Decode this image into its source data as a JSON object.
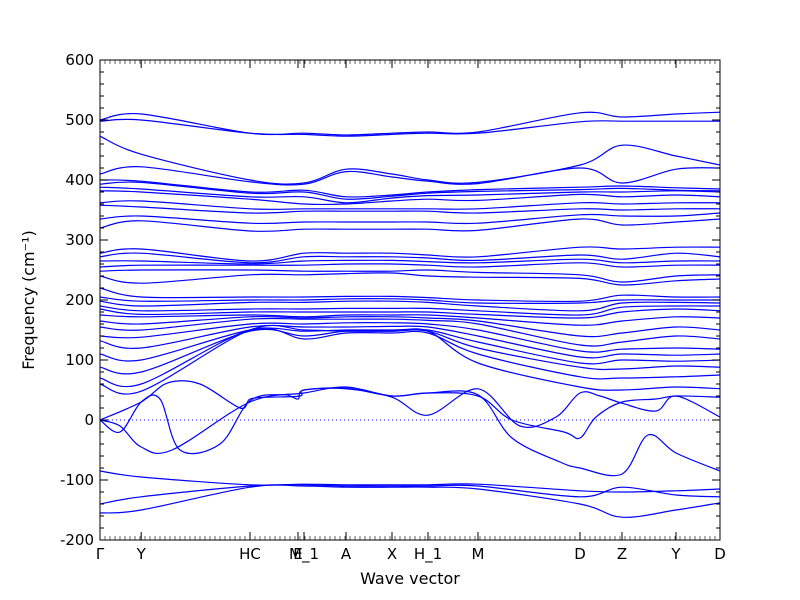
{
  "chart_data": {
    "type": "line",
    "title": "",
    "xlabel": "Wave vector",
    "ylabel": "Frequency (cm⁻¹)",
    "ylim": [
      -200,
      600
    ],
    "yticks": [
      -200,
      -100,
      0,
      100,
      200,
      300,
      400,
      500,
      600
    ],
    "xlim": [
      0,
      15.5
    ],
    "xticks": [
      {
        "label": "Γ",
        "x": 0
      },
      {
        "label": "Y",
        "x": 1.03
      },
      {
        "label": "HC",
        "x": 3.75
      },
      {
        "label": "E",
        "x": 4.95
      },
      {
        "label": "M_1",
        "x": 5.1
      },
      {
        "label": "A",
        "x": 6.15
      },
      {
        "label": "X",
        "x": 7.3
      },
      {
        "label": "H_1",
        "x": 8.2
      },
      {
        "label": "M",
        "x": 9.45
      },
      {
        "label": "D",
        "x": 12.0
      },
      {
        "label": "Z",
        "x": 13.05
      },
      {
        "label": "Y",
        "x": 14.4
      },
      {
        "label": "D",
        "x": 15.5
      }
    ],
    "zero_line": {
      "y": 0,
      "style": "dotted",
      "color": "#0000ff"
    },
    "line_color": "#0000ff",
    "series": [
      {
        "x": [
          0,
          1.03,
          3.75,
          5.1,
          6.15,
          7.3,
          8.2,
          9.45,
          12.0,
          13.05,
          14.4,
          15.5
        ],
        "y": [
          500,
          510,
          478,
          478,
          475,
          478,
          480,
          480,
          512,
          505,
          510,
          513
        ]
      },
      {
        "x": [
          0,
          1.03,
          3.75,
          5.1,
          6.15,
          7.3,
          8.2,
          9.45,
          12.0,
          13.05,
          14.4,
          15.5
        ],
        "y": [
          498,
          500,
          478,
          476,
          473,
          476,
          478,
          478,
          497,
          498,
          498,
          498
        ]
      },
      {
        "x": [
          0,
          1.03,
          3.75,
          5.1,
          6.15,
          7.3,
          8.2,
          9.45,
          12.0,
          13.05,
          14.4,
          15.5
        ],
        "y": [
          473,
          443,
          400,
          395,
          418,
          410,
          400,
          396,
          425,
          458,
          440,
          425
        ]
      },
      {
        "x": [
          0,
          1.03,
          3.75,
          5.1,
          6.15,
          7.3,
          8.2,
          9.45,
          12.0,
          13.05,
          14.4,
          15.5
        ],
        "y": [
          410,
          422,
          397,
          393,
          414,
          405,
          398,
          394,
          420,
          395,
          418,
          420
        ]
      },
      {
        "x": [
          0,
          1.03,
          3.75,
          5.1,
          6.15,
          7.3,
          8.2,
          9.45,
          12.0,
          13.05,
          14.4,
          15.5
        ],
        "y": [
          400,
          398,
          380,
          383,
          372,
          375,
          380,
          384,
          388,
          390,
          387,
          385
        ]
      },
      {
        "x": [
          0,
          1.03,
          3.75,
          5.1,
          6.15,
          7.3,
          8.2,
          9.45,
          12.0,
          13.05,
          14.4,
          15.5
        ],
        "y": [
          393,
          396,
          378,
          380,
          368,
          373,
          378,
          381,
          384,
          386,
          383,
          382
        ]
      },
      {
        "x": [
          0,
          1.03,
          3.75,
          5.1,
          6.15,
          7.3,
          8.2,
          9.45,
          12.0,
          13.05,
          14.4,
          15.5
        ],
        "y": [
          388,
          385,
          372,
          372,
          362,
          370,
          374,
          375,
          380,
          380,
          382,
          380
        ]
      },
      {
        "x": [
          0,
          1.03,
          3.75,
          5.1,
          6.15,
          7.3,
          8.2,
          9.45,
          12.0,
          13.05,
          14.4,
          15.5
        ],
        "y": [
          382,
          380,
          368,
          360,
          360,
          365,
          368,
          366,
          376,
          372,
          375,
          372
        ]
      },
      {
        "x": [
          0,
          1.03,
          3.75,
          5.1,
          6.15,
          7.3,
          8.2,
          9.45,
          12.0,
          13.05,
          14.4,
          15.5
        ],
        "y": [
          362,
          365,
          352,
          352,
          352,
          352,
          352,
          352,
          362,
          360,
          362,
          362
        ]
      },
      {
        "x": [
          0,
          1.03,
          3.75,
          5.1,
          6.15,
          7.3,
          8.2,
          9.45,
          12.0,
          13.05,
          14.4,
          15.5
        ],
        "y": [
          358,
          355,
          345,
          348,
          348,
          348,
          348,
          345,
          352,
          350,
          352,
          352
        ]
      },
      {
        "x": [
          0,
          1.03,
          3.75,
          5.1,
          6.15,
          7.3,
          8.2,
          9.45,
          12.0,
          13.05,
          14.4,
          15.5
        ],
        "y": [
          335,
          340,
          328,
          330,
          330,
          330,
          330,
          328,
          342,
          340,
          340,
          345
        ]
      },
      {
        "x": [
          0,
          1.03,
          3.75,
          5.1,
          6.15,
          7.3,
          8.2,
          9.45,
          12.0,
          13.05,
          14.4,
          15.5
        ],
        "y": [
          320,
          332,
          315,
          318,
          318,
          318,
          318,
          316,
          335,
          325,
          330,
          335
        ]
      },
      {
        "x": [
          0,
          1.03,
          3.75,
          5.1,
          6.15,
          7.3,
          8.2,
          9.45,
          12.0,
          13.05,
          14.4,
          15.5
        ],
        "y": [
          278,
          285,
          265,
          278,
          278,
          278,
          275,
          272,
          288,
          285,
          288,
          288
        ]
      },
      {
        "x": [
          0,
          1.03,
          3.75,
          5.1,
          6.15,
          7.3,
          8.2,
          9.45,
          12.0,
          13.05,
          14.4,
          15.5
        ],
        "y": [
          272,
          278,
          262,
          272,
          272,
          272,
          270,
          266,
          275,
          268,
          278,
          272
        ]
      },
      {
        "x": [
          0,
          1.03,
          3.75,
          5.1,
          6.15,
          7.3,
          8.2,
          9.45,
          12.0,
          13.05,
          14.4,
          15.5
        ],
        "y": [
          265,
          265,
          260,
          265,
          266,
          266,
          264,
          262,
          268,
          262,
          265,
          265
        ]
      },
      {
        "x": [
          0,
          1.03,
          3.75,
          5.1,
          6.15,
          7.3,
          8.2,
          9.45,
          12.0,
          13.05,
          14.4,
          15.5
        ],
        "y": [
          255,
          258,
          258,
          258,
          260,
          260,
          258,
          255,
          262,
          255,
          258,
          258
        ]
      },
      {
        "x": [
          0,
          1.03,
          3.75,
          5.1,
          6.15,
          7.3,
          8.2,
          9.45,
          12.0,
          13.05,
          14.4,
          15.5
        ],
        "y": [
          248,
          250,
          250,
          248,
          248,
          248,
          250,
          246,
          242,
          230,
          240,
          242
        ]
      },
      {
        "x": [
          0,
          1.03,
          3.75,
          5.1,
          6.15,
          7.3,
          8.2,
          9.45,
          12.0,
          13.05,
          14.4,
          15.5
        ],
        "y": [
          240,
          228,
          242,
          242,
          244,
          245,
          240,
          238,
          236,
          225,
          232,
          235
        ]
      },
      {
        "x": [
          0,
          1.03,
          3.75,
          5.1,
          6.15,
          7.3,
          8.2,
          9.45,
          12.0,
          13.05,
          14.4,
          15.5
        ],
        "y": [
          220,
          205,
          205,
          205,
          206,
          206,
          204,
          200,
          198,
          208,
          205,
          205
        ]
      },
      {
        "x": [
          0,
          1.03,
          3.75,
          5.1,
          6.15,
          7.3,
          8.2,
          9.45,
          12.0,
          13.05,
          14.4,
          15.5
        ],
        "y": [
          205,
          198,
          200,
          200,
          202,
          202,
          200,
          195,
          195,
          200,
          200,
          200
        ]
      },
      {
        "x": [
          0,
          1.03,
          3.75,
          5.1,
          6.15,
          7.3,
          8.2,
          9.45,
          12.0,
          13.05,
          14.4,
          15.5
        ],
        "y": [
          198,
          190,
          196,
          196,
          198,
          198,
          196,
          190,
          182,
          195,
          196,
          195
        ]
      },
      {
        "x": [
          0,
          1.03,
          3.75,
          5.1,
          6.15,
          7.3,
          8.2,
          9.45,
          12.0,
          13.05,
          14.4,
          15.5
        ],
        "y": [
          190,
          182,
          185,
          185,
          186,
          186,
          186,
          182,
          175,
          188,
          190,
          190
        ]
      },
      {
        "x": [
          0,
          1.03,
          3.75,
          5.1,
          6.15,
          7.3,
          8.2,
          9.45,
          12.0,
          13.05,
          14.4,
          15.5
        ],
        "y": [
          185,
          176,
          180,
          180,
          180,
          180,
          180,
          176,
          170,
          180,
          185,
          182
        ]
      },
      {
        "x": [
          0,
          1.03,
          3.75,
          5.1,
          6.15,
          7.3,
          8.2,
          9.45,
          12.0,
          13.05,
          14.4,
          15.5
        ],
        "y": [
          175,
          172,
          175,
          172,
          175,
          175,
          175,
          170,
          158,
          165,
          172,
          170
        ]
      },
      {
        "x": [
          0,
          1.03,
          3.75,
          5.1,
          6.15,
          7.3,
          8.2,
          9.45,
          12.0,
          13.05,
          14.4,
          15.5
        ],
        "y": [
          165,
          160,
          172,
          170,
          172,
          172,
          170,
          165,
          140,
          145,
          155,
          150
        ]
      },
      {
        "x": [
          0,
          1.03,
          3.75,
          5.1,
          6.15,
          7.3,
          8.2,
          9.45,
          12.0,
          13.05,
          14.4,
          15.5
        ],
        "y": [
          155,
          150,
          168,
          168,
          168,
          168,
          166,
          160,
          125,
          130,
          140,
          135
        ]
      },
      {
        "x": [
          0,
          1.03,
          3.75,
          5.1,
          6.15,
          7.3,
          8.2,
          9.45,
          12.0,
          13.05,
          14.4,
          15.5
        ],
        "y": [
          140,
          138,
          160,
          160,
          162,
          162,
          160,
          150,
          115,
          118,
          120,
          118
        ]
      },
      {
        "x": [
          0,
          1.03,
          3.75,
          5.1,
          6.15,
          7.3,
          8.2,
          9.45,
          12.0,
          13.05,
          14.4,
          15.5
        ],
        "y": [
          132,
          120,
          155,
          155,
          155,
          156,
          155,
          140,
          105,
          110,
          108,
          110
        ]
      },
      {
        "x": [
          0,
          1.03,
          3.75,
          5.1,
          6.15,
          7.3,
          8.2,
          9.45,
          12.0,
          13.05,
          14.4,
          15.5
        ],
        "y": [
          110,
          100,
          150,
          148,
          150,
          150,
          150,
          130,
          95,
          100,
          98,
          100
        ]
      },
      {
        "x": [
          0,
          1.03,
          3.75,
          5.1,
          6.15,
          7.3,
          8.2,
          9.45,
          12.0,
          13.05,
          14.4,
          15.5
        ],
        "y": [
          88,
          80,
          148,
          140,
          148,
          148,
          148,
          120,
          88,
          85,
          90,
          88
        ]
      },
      {
        "x": [
          0,
          1.03,
          3.75,
          5.1,
          6.15,
          7.3,
          8.2,
          9.45,
          12.0,
          13.05,
          14.4,
          15.5
        ],
        "y": [
          70,
          60,
          150,
          135,
          145,
          145,
          145,
          110,
          72,
          70,
          72,
          75
        ]
      },
      {
        "x": [
          0,
          1.03,
          3.75,
          5.1,
          6.15,
          7.3,
          8.2,
          9.45,
          12.0,
          13.05,
          14.4,
          15.5
        ],
        "y": [
          60,
          48,
          150,
          150,
          148,
          148,
          148,
          95,
          55,
          50,
          55,
          52
        ]
      },
      {
        "x": [
          0,
          1.03,
          1.7,
          2.5,
          3.5,
          3.75,
          4.2,
          5.0,
          5.1,
          6.15,
          7.3,
          8.2,
          9.45,
          10.3,
          11.6,
          12.0,
          12.4,
          13.05,
          13.9,
          14.4,
          15.5
        ],
        "y": [
          0,
          30,
          62,
          60,
          20,
          35,
          38,
          40,
          50,
          53,
          40,
          45,
          40,
          0,
          -20,
          -30,
          5,
          30,
          35,
          40,
          38
        ]
      },
      {
        "x": [
          0,
          0.5,
          1.03,
          1.5,
          2.0,
          3.0,
          3.75,
          4.6,
          4.95,
          5.1,
          6.15,
          7.3,
          8.2,
          9.45,
          10.5,
          11.4,
          12.0,
          12.5,
          13.05,
          13.9,
          14.4,
          15.5
        ],
        "y": [
          0,
          -20,
          30,
          35,
          -50,
          -40,
          32,
          42,
          35,
          50,
          52,
          38,
          8,
          52,
          -10,
          5,
          45,
          40,
          28,
          15,
          40,
          5
        ]
      },
      {
        "x": [
          0,
          0.5,
          1.03,
          1.8,
          3.75,
          5.1,
          6.15,
          7.3,
          8.2,
          9.45,
          10.3,
          11.5,
          12.0,
          13.05,
          13.7,
          14.4,
          15.5
        ],
        "y": [
          0,
          -10,
          -45,
          -50,
          30,
          45,
          55,
          40,
          45,
          42,
          -30,
          -70,
          -80,
          -90,
          -25,
          -55,
          -85
        ]
      },
      {
        "x": [
          0,
          1.03,
          3.75,
          5.1,
          6.15,
          7.3,
          8.2,
          9.45,
          12.0,
          13.05,
          14.4,
          15.5
        ],
        "y": [
          -85,
          -95,
          -108,
          -107,
          -108,
          -108,
          -108,
          -107,
          -118,
          -120,
          -118,
          -115
        ]
      },
      {
        "x": [
          0,
          1.03,
          3.75,
          5.1,
          6.15,
          7.3,
          8.2,
          9.45,
          12.0,
          13.05,
          14.4,
          15.5
        ],
        "y": [
          -140,
          -128,
          -110,
          -108,
          -110,
          -110,
          -110,
          -110,
          -128,
          -112,
          -125,
          -128
        ]
      },
      {
        "x": [
          0,
          1.03,
          3.75,
          5.1,
          6.15,
          7.3,
          8.2,
          9.45,
          12.0,
          13.05,
          14.4,
          15.5
        ],
        "y": [
          -155,
          -150,
          -112,
          -110,
          -112,
          -112,
          -112,
          -115,
          -140,
          -162,
          -150,
          -138
        ]
      }
    ]
  }
}
